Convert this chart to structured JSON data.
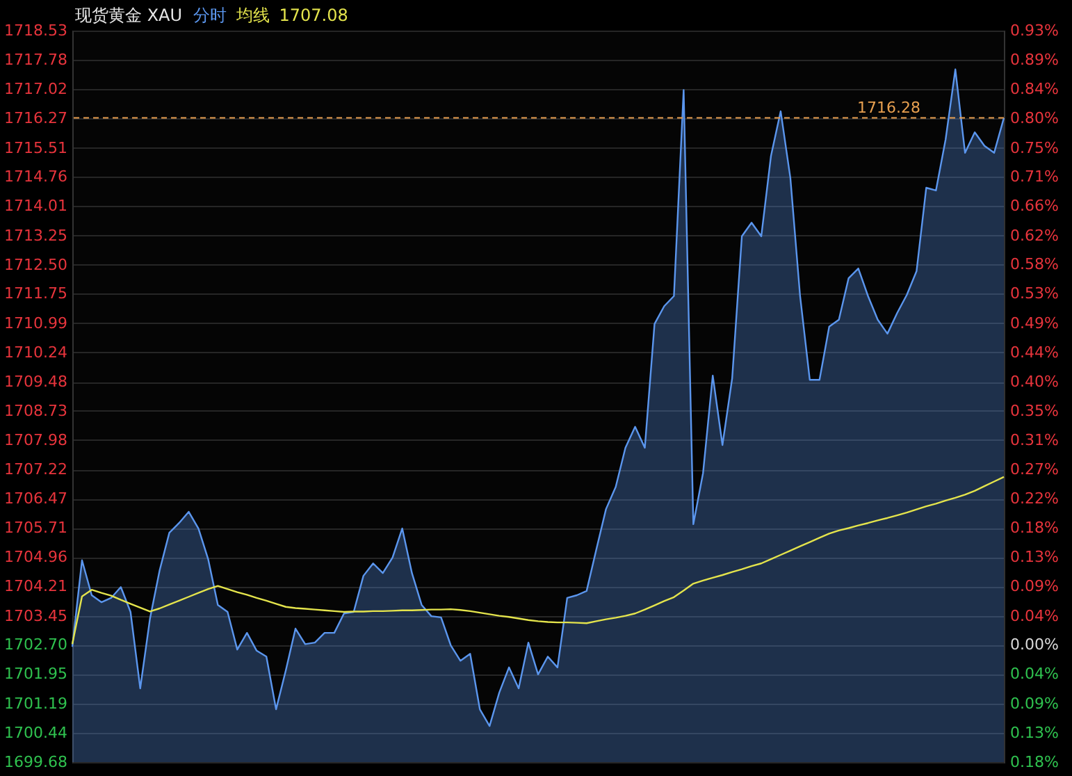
{
  "chart_data": {
    "type": "area",
    "title": "现货黄金 XAU",
    "legend": "top",
    "annotations": [
      "1707.08"
    ],
    "categories": [
      null,
      null,
      null,
      null,
      null,
      null,
      null,
      null,
      null,
      null,
      null,
      null,
      null,
      null,
      null,
      null,
      null,
      null,
      null,
      null,
      null,
      null,
      null,
      null,
      null,
      null,
      null,
      null,
      null,
      null,
      null,
      null,
      null,
      null,
      null,
      null,
      null,
      null,
      null,
      null,
      null,
      null,
      null,
      null,
      null,
      null,
      null,
      null,
      null,
      null,
      null,
      null,
      null,
      null,
      null,
      null,
      null,
      null,
      null,
      null,
      null,
      null,
      null,
      null,
      null,
      null,
      null,
      null,
      null,
      null,
      null,
      null,
      null,
      null,
      null,
      null,
      null,
      null,
      null,
      null,
      null,
      null,
      null,
      null,
      null,
      null,
      null,
      null,
      null,
      null,
      null,
      null,
      null,
      null,
      null,
      null,
      null
    ],
    "series": [
      {
        "name": "分时",
        "color": "#5b96ee",
        "values": [
          1702.65,
          1704.88,
          1703.98,
          1703.8,
          1703.91,
          1704.19,
          1703.55,
          1701.58,
          1703.37,
          1704.62,
          1705.59,
          1705.84,
          1706.13,
          1705.7,
          1704.91,
          1703.73,
          1703.55,
          1702.58,
          1703.01,
          1702.55,
          1702.4,
          1701.04,
          1702.04,
          1703.12,
          1702.72,
          1702.76,
          1703.01,
          1703.01,
          1703.51,
          1703.55,
          1704.48,
          1704.8,
          1704.55,
          1704.95,
          1705.7,
          1704.55,
          1703.73,
          1703.44,
          1703.41,
          1702.69,
          1702.29,
          1702.47,
          1701.04,
          1700.61,
          1701.47,
          1702.12,
          1701.58,
          1702.76,
          1701.94,
          1702.4,
          1702.12,
          1703.91,
          1703.98,
          1704.09,
          1705.16,
          1706.2,
          1706.77,
          1707.78,
          1708.32,
          1707.78,
          1710.97,
          1711.43,
          1711.69,
          1717.0,
          1705.81,
          1707.13,
          1709.64,
          1707.85,
          1709.57,
          1713.23,
          1713.58,
          1713.23,
          1715.3,
          1716.45,
          1714.73,
          1711.69,
          1709.53,
          1709.53,
          1710.9,
          1711.08,
          1712.15,
          1712.4,
          1711.69,
          1711.08,
          1710.72,
          1711.25,
          1711.72,
          1712.33,
          1714.48,
          1714.41,
          1715.73,
          1717.53,
          1715.38,
          1715.91,
          1715.56,
          1715.38,
          1716.28
        ]
      },
      {
        "name": "均线",
        "type": "line",
        "color": "#e4e44c",
        "values": [
          1702.72,
          1703.95,
          1704.12,
          1704.04,
          1703.97,
          1703.86,
          1703.76,
          1703.66,
          1703.56,
          1703.64,
          1703.74,
          1703.84,
          1703.94,
          1704.04,
          1704.14,
          1704.22,
          1704.14,
          1704.06,
          1703.99,
          1703.91,
          1703.84,
          1703.76,
          1703.68,
          1703.65,
          1703.63,
          1703.61,
          1703.59,
          1703.57,
          1703.55,
          1703.56,
          1703.56,
          1703.57,
          1703.57,
          1703.58,
          1703.59,
          1703.59,
          1703.6,
          1703.61,
          1703.61,
          1703.62,
          1703.6,
          1703.57,
          1703.53,
          1703.49,
          1703.45,
          1703.42,
          1703.38,
          1703.34,
          1703.31,
          1703.29,
          1703.28,
          1703.28,
          1703.27,
          1703.26,
          1703.31,
          1703.36,
          1703.4,
          1703.45,
          1703.51,
          1703.61,
          1703.72,
          1703.83,
          1703.93,
          1704.1,
          1704.28,
          1704.36,
          1704.43,
          1704.5,
          1704.58,
          1704.65,
          1704.73,
          1704.8,
          1704.91,
          1705.02,
          1705.13,
          1705.24,
          1705.35,
          1705.46,
          1705.57,
          1705.65,
          1705.71,
          1705.78,
          1705.84,
          1705.91,
          1705.97,
          1706.04,
          1706.11,
          1706.19,
          1706.27,
          1706.34,
          1706.42,
          1706.49,
          1706.57,
          1706.67,
          1706.79,
          1706.91,
          1707.03
        ]
      }
    ],
    "ylim": [
      1699.68,
      1718.53
    ],
    "yticks": [
      1699.68,
      1700.44,
      1701.19,
      1701.95,
      {
        "value": 1702.7,
        "label": "1702.70"
      },
      1703.45,
      1704.21,
      1704.96,
      1705.71,
      1706.47,
      1707.22,
      1707.98,
      1708.73,
      1709.48,
      1710.24,
      1710.99,
      1711.75,
      {
        "value": 1712.5,
        "label": "1712.50"
      },
      1713.25,
      1714.01,
      1714.76,
      1715.51,
      1716.27,
      1717.02,
      1717.78,
      1718.53
    ],
    "y2lim": [
      -0.1774,
      0.9297
    ],
    "y2ticks": [
      {
        "value": -0.1774,
        "label": "0.18%"
      },
      {
        "value": -0.1327,
        "label": "0.13%"
      },
      {
        "value": -0.0887,
        "label": "0.09%"
      },
      {
        "value": -0.044,
        "label": "0.04%"
      },
      {
        "value": 0,
        "label": "0.00%"
      },
      {
        "value": 0.044,
        "label": "0.04%"
      },
      {
        "value": 0.0887,
        "label": "0.09%"
      },
      {
        "value": 0.1327,
        "label": "0.13%"
      },
      {
        "value": 0.1768,
        "label": "0.18%"
      },
      {
        "value": 0.2214,
        "label": "0.22%"
      },
      {
        "value": 0.2655,
        "label": "0.27%"
      },
      {
        "value": 0.3101,
        "label": "0.31%"
      },
      {
        "value": 0.3541,
        "label": "0.35%"
      },
      {
        "value": 0.3982,
        "label": "0.40%"
      },
      {
        "value": 0.4428,
        "label": "0.44%"
      },
      {
        "value": 0.4869,
        "label": "0.49%"
      },
      {
        "value": 0.5315,
        "label": "0.53%"
      },
      {
        "value": 0.5756,
        "label": "0.58%"
      },
      {
        "value": 0.6196,
        "label": "0.62%"
      },
      {
        "value": 0.6642,
        "label": "0.66%"
      },
      {
        "value": 0.7083,
        "label": "0.71%"
      },
      {
        "value": 0.7523,
        "label": "0.75%"
      },
      {
        "value": 0.797,
        "label": "0.80%"
      },
      {
        "value": 0.841,
        "label": "0.84%"
      },
      {
        "value": 0.8857,
        "label": "0.89%"
      },
      {
        "value": 0.9297,
        "label": "0.93%"
      }
    ],
    "grid": true,
    "ref_lines": [
      {
        "axis": "y",
        "value": 1716.28,
        "label": "1716.28",
        "color": "#e8a050",
        "line_style": "dashed"
      }
    ]
  }
}
